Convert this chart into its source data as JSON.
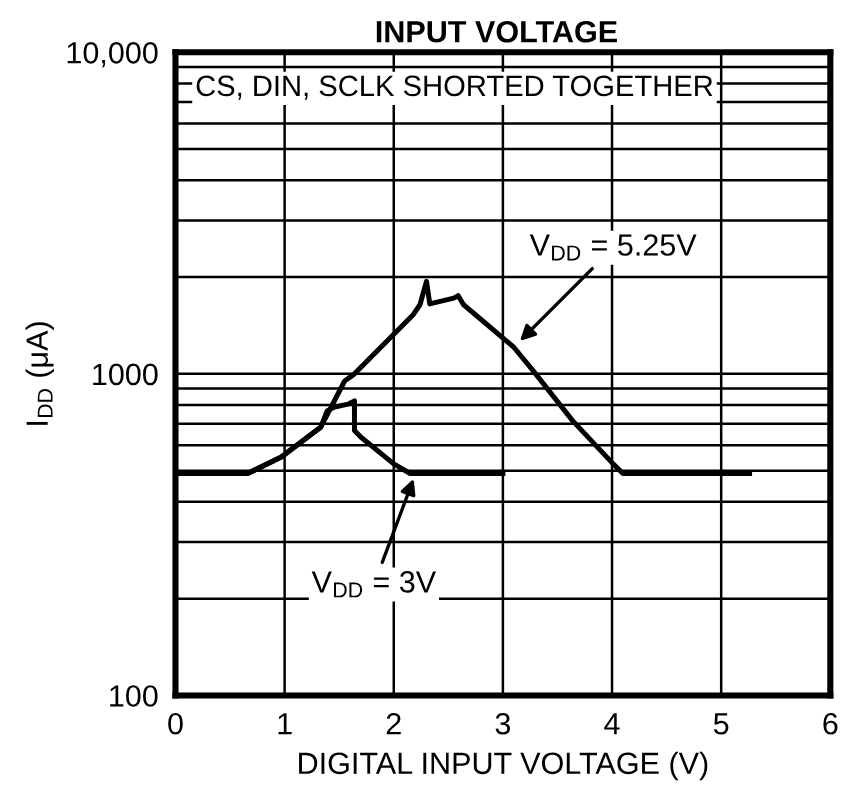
{
  "chart_data": {
    "type": "line",
    "title": "INPUT VOLTAGE",
    "xlabel": "DIGITAL INPUT VOLTAGE (V)",
    "ylabel": "I$_{DD}$ (μA)",
    "log": "y",
    "xlim": [
      0,
      6
    ],
    "ylim": [
      100,
      10000
    ],
    "xticks": [
      0,
      1,
      2,
      3,
      4,
      5,
      6
    ],
    "yticks": [
      100,
      {
        "value": 200,
        "label": null
      },
      {
        "value": 300,
        "label": null
      },
      {
        "value": 400,
        "label": null
      },
      {
        "value": 500,
        "label": null
      },
      {
        "value": 600,
        "label": null
      },
      {
        "value": 700,
        "label": null
      },
      {
        "value": 800,
        "label": null
      },
      {
        "value": 900,
        "label": null
      },
      1000,
      {
        "value": 2000,
        "label": null
      },
      {
        "value": 3000,
        "label": null
      },
      {
        "value": 4000,
        "label": null
      },
      {
        "value": 5000,
        "label": null
      },
      {
        "value": 6000,
        "label": null
      },
      {
        "value": 7000,
        "label": null
      },
      {
        "value": 8000,
        "label": null
      },
      {
        "value": 9000,
        "label": null
      },
      {
        "value": 10000,
        "label": "10,000"
      }
    ],
    "grid": true,
    "marker": "none",
    "line_style": "solid",
    "series": [
      {
        "color": "#000000",
        "x": [
          0,
          0.66,
          0.97,
          1.33,
          1.55,
          1.64,
          2.18,
          2.24,
          2.3,
          2.33,
          2.55,
          2.59,
          2.64,
          3.1,
          3.28,
          3.64,
          4.01,
          4.1,
          5.26
        ],
        "values": [
          490,
          490,
          551,
          682,
          950,
          1000,
          1530,
          1640,
          1940,
          1650,
          1720,
          1750,
          1640,
          1210,
          1020,
          714,
          525,
          490,
          490
        ]
      },
      {
        "color": "#000000",
        "x": [
          0,
          0.66,
          0.97,
          1.33,
          1.39,
          1.45,
          1.58,
          1.64,
          1.64,
          1.7,
          2.0,
          2.15,
          3.0
        ],
        "values": [
          490,
          490,
          551,
          682,
          767,
          787,
          805,
          824,
          667,
          635,
          525,
          490,
          490
        ]
      }
    ],
    "annotations": [
      "CS, DIN, SCLK SHORTED TOGETHER",
      {
        "text": "V$_{DD}$ = 5.25V",
        "x": 3.12,
        "y": 1230
      },
      {
        "text": "V$_{DD}$ = 3V",
        "x": 2.2,
        "y": 490
      }
    ]
  }
}
